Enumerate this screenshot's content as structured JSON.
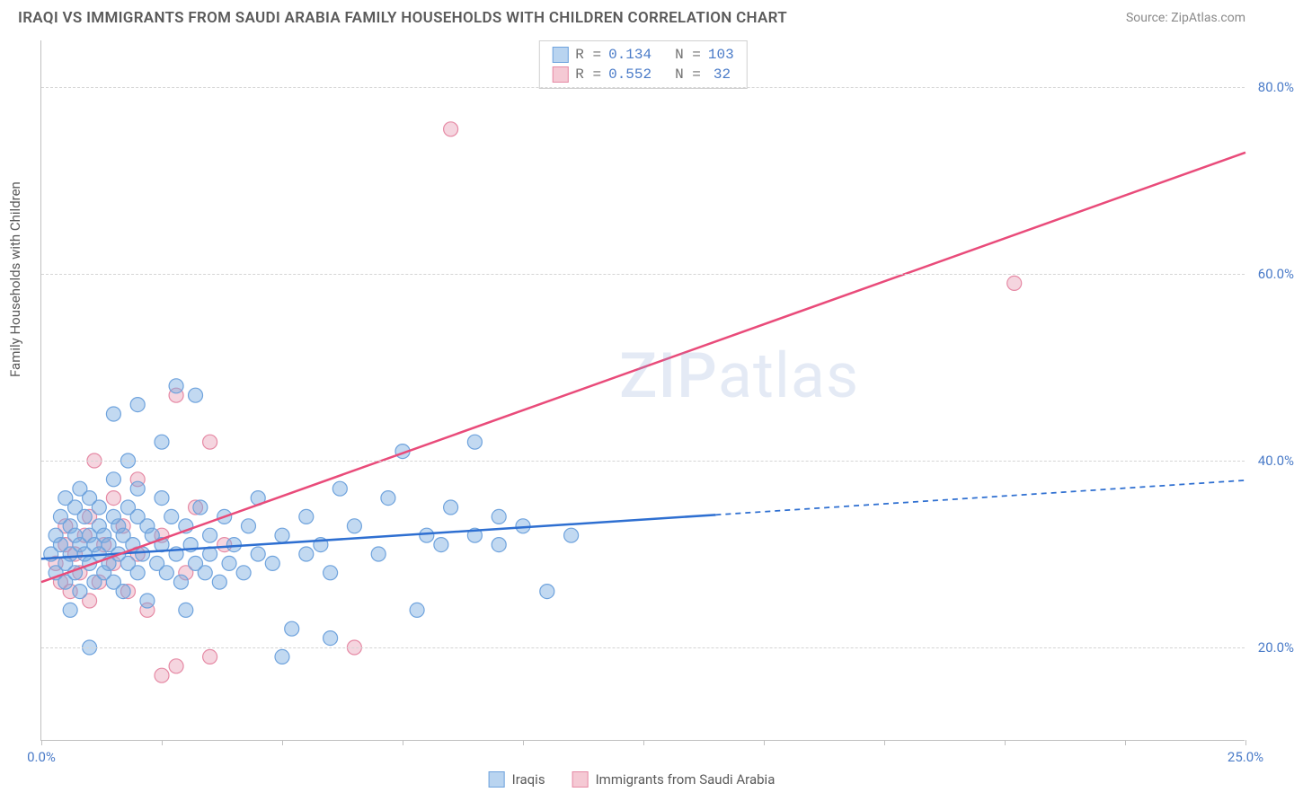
{
  "title": "IRAQI VS IMMIGRANTS FROM SAUDI ARABIA FAMILY HOUSEHOLDS WITH CHILDREN CORRELATION CHART",
  "source": "Source: ZipAtlas.com",
  "ylabel": "Family Households with Children",
  "watermark_a": "ZIP",
  "watermark_b": "atlas",
  "chart": {
    "type": "scatter",
    "xlim": [
      0,
      25
    ],
    "ylim": [
      10,
      85
    ],
    "yticks": [
      20,
      40,
      60,
      80
    ],
    "ytick_labels": [
      "20.0%",
      "40.0%",
      "60.0%",
      "80.0%"
    ],
    "xticks": [
      0,
      2.5,
      5,
      7.5,
      10,
      12.5,
      15,
      17.5,
      20,
      22.5,
      25
    ],
    "xtick_labels_shown": {
      "0": "0.0%",
      "25": "25.0%"
    },
    "grid_color": "#d5d5d5",
    "background_color": "#ffffff",
    "series": [
      {
        "key": "iraqis",
        "label": "Iraqis",
        "swatch_fill": "#b9d4f0",
        "swatch_stroke": "#6fa3dd",
        "marker_fill": "rgba(120,170,225,0.45)",
        "marker_stroke": "#6fa3dd",
        "marker_radius": 8,
        "r": "0.134",
        "n": "103",
        "trend": {
          "color": "#2e6fd1",
          "width": 2.5,
          "solid": {
            "x1": 0,
            "y1": 29.5,
            "x2": 14,
            "y2": 34.2
          },
          "dashed": {
            "x1": 14,
            "y1": 34.2,
            "x2": 25,
            "y2": 37.9
          }
        },
        "points": [
          [
            0.2,
            30
          ],
          [
            0.3,
            32
          ],
          [
            0.3,
            28
          ],
          [
            0.4,
            31
          ],
          [
            0.4,
            34
          ],
          [
            0.5,
            29
          ],
          [
            0.5,
            36
          ],
          [
            0.5,
            27
          ],
          [
            0.6,
            30
          ],
          [
            0.6,
            33
          ],
          [
            0.7,
            32
          ],
          [
            0.7,
            35
          ],
          [
            0.7,
            28
          ],
          [
            0.8,
            31
          ],
          [
            0.8,
            37
          ],
          [
            0.8,
            26
          ],
          [
            0.9,
            30
          ],
          [
            0.9,
            34
          ],
          [
            1.0,
            32
          ],
          [
            1.0,
            29
          ],
          [
            1.0,
            36
          ],
          [
            1.1,
            31
          ],
          [
            1.1,
            27
          ],
          [
            1.2,
            33
          ],
          [
            1.2,
            30
          ],
          [
            1.2,
            35
          ],
          [
            1.3,
            28
          ],
          [
            1.3,
            32
          ],
          [
            1.4,
            31
          ],
          [
            1.4,
            29
          ],
          [
            1.5,
            34
          ],
          [
            1.5,
            27
          ],
          [
            1.5,
            38
          ],
          [
            1.6,
            30
          ],
          [
            1.6,
            33
          ],
          [
            1.7,
            26
          ],
          [
            1.7,
            32
          ],
          [
            1.8,
            29
          ],
          [
            1.8,
            35
          ],
          [
            1.9,
            31
          ],
          [
            2.0,
            28
          ],
          [
            2.0,
            34
          ],
          [
            2.0,
            37
          ],
          [
            2.1,
            30
          ],
          [
            2.2,
            33
          ],
          [
            2.2,
            25
          ],
          [
            2.3,
            32
          ],
          [
            2.4,
            29
          ],
          [
            2.5,
            36
          ],
          [
            2.5,
            31
          ],
          [
            2.6,
            28
          ],
          [
            2.7,
            34
          ],
          [
            2.8,
            30
          ],
          [
            2.9,
            27
          ],
          [
            3.0,
            33
          ],
          [
            3.0,
            24
          ],
          [
            3.1,
            31
          ],
          [
            3.2,
            29
          ],
          [
            3.3,
            35
          ],
          [
            3.4,
            28
          ],
          [
            3.5,
            32
          ],
          [
            3.5,
            30
          ],
          [
            3.7,
            27
          ],
          [
            3.8,
            34
          ],
          [
            3.9,
            29
          ],
          [
            4.0,
            31
          ],
          [
            4.2,
            28
          ],
          [
            4.3,
            33
          ],
          [
            4.5,
            30
          ],
          [
            1.0,
            20
          ],
          [
            1.5,
            45
          ],
          [
            2.0,
            46
          ],
          [
            2.5,
            42
          ],
          [
            2.8,
            48
          ],
          [
            4.8,
            29
          ],
          [
            5.0,
            32
          ],
          [
            5.2,
            22
          ],
          [
            5.5,
            30
          ],
          [
            5.5,
            34
          ],
          [
            5.8,
            31
          ],
          [
            6.0,
            28
          ],
          [
            6.2,
            37
          ],
          [
            6.5,
            33
          ],
          [
            7.0,
            30
          ],
          [
            7.2,
            36
          ],
          [
            7.5,
            41
          ],
          [
            7.8,
            24
          ],
          [
            8.0,
            32
          ],
          [
            8.3,
            31
          ],
          [
            8.5,
            35
          ],
          [
            9.0,
            42
          ],
          [
            9.0,
            32
          ],
          [
            9.5,
            31
          ],
          [
            9.5,
            34
          ],
          [
            10.0,
            33
          ],
          [
            10.5,
            26
          ],
          [
            11.0,
            32
          ],
          [
            5.0,
            19
          ],
          [
            6.0,
            21
          ],
          [
            4.5,
            36
          ],
          [
            3.2,
            47
          ],
          [
            1.8,
            40
          ],
          [
            0.6,
            24
          ]
        ]
      },
      {
        "key": "saudi",
        "label": "Immigrants from Saudi Arabia",
        "swatch_fill": "#f5c9d4",
        "swatch_stroke": "#e68aa5",
        "marker_fill": "rgba(230,150,175,0.40)",
        "marker_stroke": "#e68aa5",
        "marker_radius": 8,
        "r": "0.552",
        "n": "32",
        "trend": {
          "color": "#e94b7a",
          "width": 2.5,
          "solid": {
            "x1": 0,
            "y1": 27,
            "x2": 25,
            "y2": 73
          },
          "dashed": null
        },
        "points": [
          [
            0.3,
            29
          ],
          [
            0.4,
            27
          ],
          [
            0.5,
            31
          ],
          [
            0.5,
            33
          ],
          [
            0.6,
            26
          ],
          [
            0.7,
            30
          ],
          [
            0.8,
            28
          ],
          [
            0.9,
            32
          ],
          [
            1.0,
            25
          ],
          [
            1.0,
            34
          ],
          [
            1.1,
            40
          ],
          [
            1.2,
            27
          ],
          [
            1.3,
            31
          ],
          [
            1.5,
            29
          ],
          [
            1.5,
            36
          ],
          [
            1.7,
            33
          ],
          [
            1.8,
            26
          ],
          [
            2.0,
            30
          ],
          [
            2.0,
            38
          ],
          [
            2.2,
            24
          ],
          [
            2.5,
            32
          ],
          [
            2.8,
            47
          ],
          [
            3.0,
            28
          ],
          [
            3.2,
            35
          ],
          [
            3.5,
            42
          ],
          [
            3.5,
            19
          ],
          [
            3.8,
            31
          ],
          [
            2.8,
            18
          ],
          [
            2.5,
            17
          ],
          [
            6.5,
            20
          ],
          [
            8.5,
            75.5
          ],
          [
            20.2,
            59
          ]
        ]
      }
    ]
  },
  "legend": {
    "r_label": "R =",
    "n_label": "N ="
  }
}
